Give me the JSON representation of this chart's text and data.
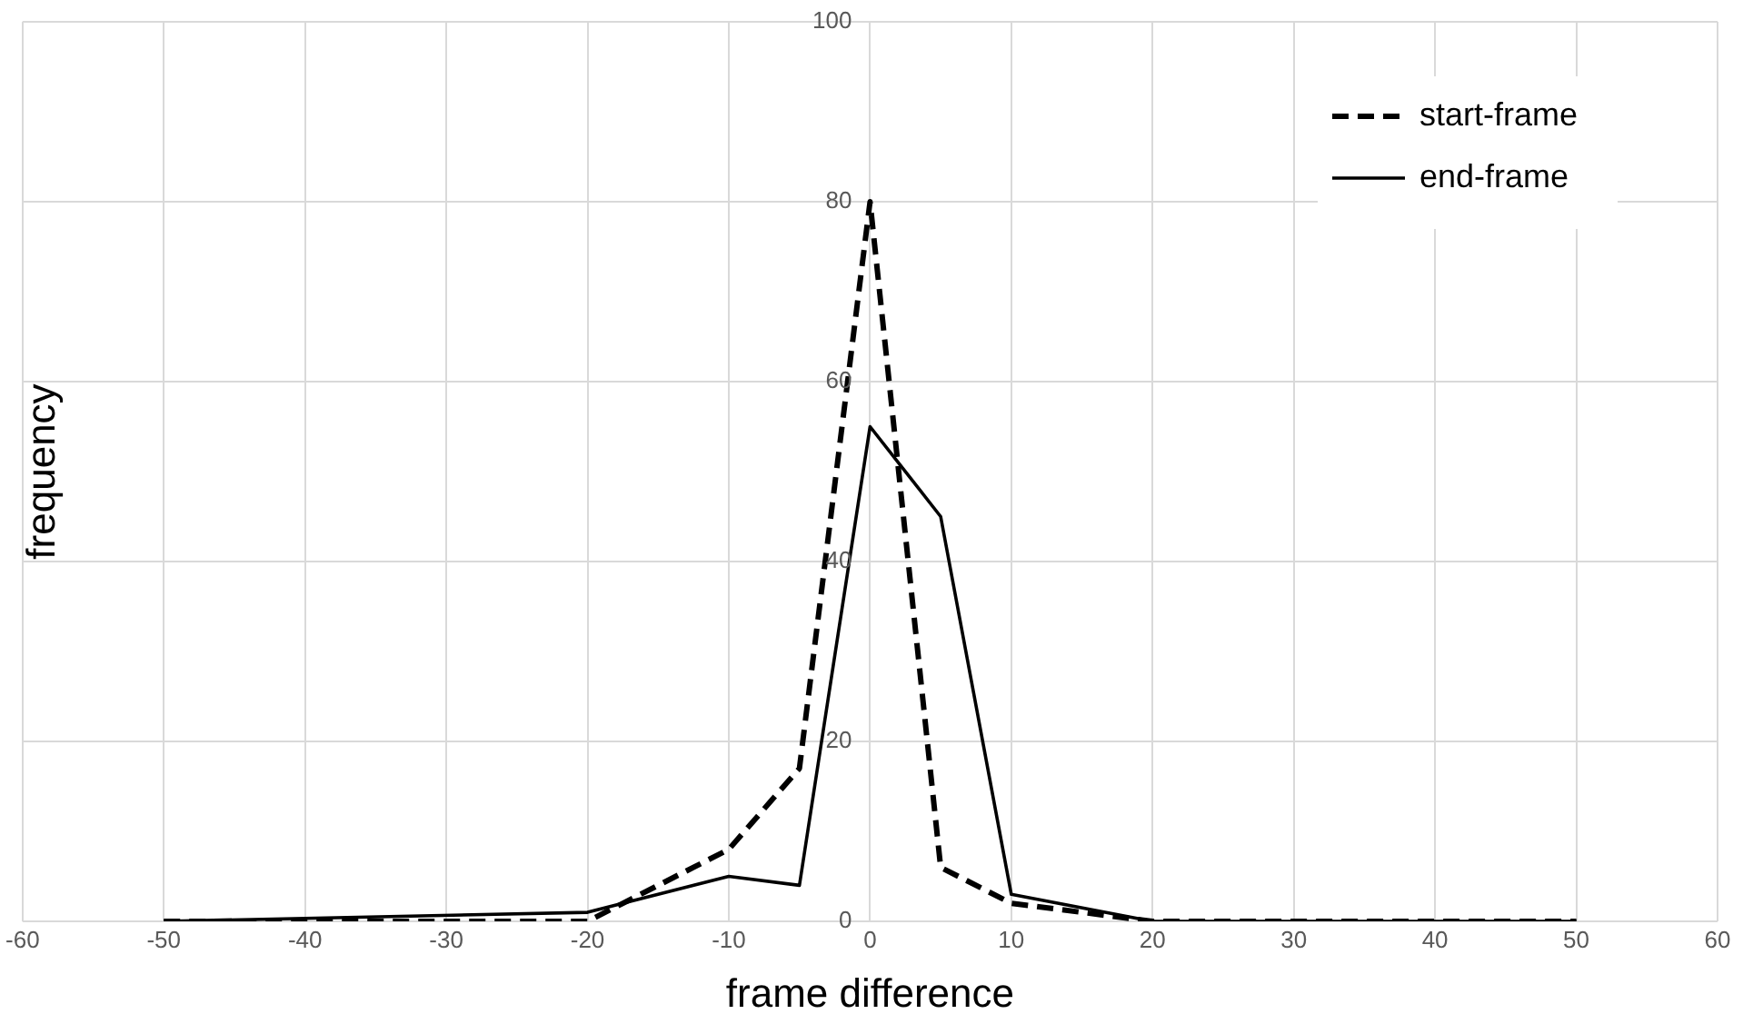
{
  "chart_data": {
    "type": "line",
    "xlabel": "frame difference",
    "ylabel": "frequency",
    "x": [
      -50,
      -20,
      -10,
      -5,
      0,
      5,
      10,
      20,
      50
    ],
    "series": [
      {
        "name": "start-frame",
        "color": "#000000",
        "line_style": "dashed",
        "values": [
          0,
          0,
          8,
          17,
          80,
          6,
          2,
          0,
          0
        ]
      },
      {
        "name": "end-frame",
        "color": "#000000",
        "line_style": "solid",
        "values": [
          0,
          1,
          5,
          4,
          55,
          45,
          3,
          0,
          0
        ]
      }
    ],
    "xlim": [
      -60,
      60
    ],
    "xticks": [
      -60,
      -50,
      -40,
      -30,
      -20,
      -10,
      0,
      10,
      20,
      30,
      40,
      50,
      60
    ],
    "ylim": [
      0,
      100
    ],
    "yticks": [
      0,
      20,
      40,
      60,
      80,
      100
    ],
    "grid": true,
    "legend": "top right",
    "marker": "none"
  }
}
